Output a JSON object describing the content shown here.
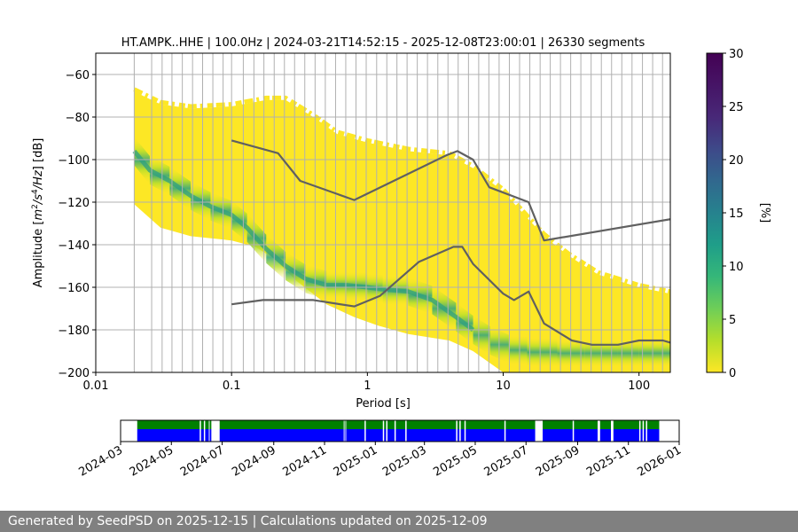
{
  "chart_data": [
    {
      "type": "heatmap",
      "title": "HT.AMPK..HHE | 100.0Hz | 2024-03-21T14:52:15 - 2025-12-08T23:00:01 | 26330 segments",
      "xlabel": "Period [s]",
      "ylabel_parts": [
        "Amplitude [",
        "m",
        "2",
        "/",
        "s",
        "4",
        "/",
        "Hz",
        "] [dB]"
      ],
      "x_scale": "log",
      "xlim": [
        0.01,
        170
      ],
      "ylim": [
        -200,
        -50
      ],
      "x_ticks": [
        {
          "v": 0.01,
          "l": "0.01"
        },
        {
          "v": 0.1,
          "l": "0.1"
        },
        {
          "v": 1,
          "l": "1"
        },
        {
          "v": 10,
          "l": "10"
        },
        {
          "v": 100,
          "l": "100"
        }
      ],
      "y_ticks": [
        {
          "v": -60,
          "l": "−60"
        },
        {
          "v": -80,
          "l": "−80"
        },
        {
          "v": -100,
          "l": "−100"
        },
        {
          "v": -120,
          "l": "−120"
        },
        {
          "v": -140,
          "l": "−140"
        },
        {
          "v": -160,
          "l": "−160"
        },
        {
          "v": -180,
          "l": "−180"
        },
        {
          "v": -200,
          "l": "−200"
        }
      ],
      "grid": true,
      "period_grid_lines": [
        0.0192,
        0.0258,
        0.0308,
        0.0364,
        0.0434,
        0.0516,
        0.0612,
        0.0728,
        0.0866,
        0.1,
        0.122,
        0.146,
        0.173,
        0.206,
        0.245,
        0.291,
        0.346,
        0.412,
        0.49,
        0.583,
        0.693,
        0.824,
        0.98,
        1.17,
        1.39,
        1.65,
        1.96,
        2.33,
        2.77,
        3.3,
        3.92,
        4.66,
        5.55,
        6.6,
        7.84,
        9.33,
        11.1,
        13.2,
        15.7,
        18.7,
        22.2,
        26.4,
        31.4,
        37.3,
        44.4,
        52.8,
        62.8,
        74.7,
        88.8,
        106,
        126,
        149
      ],
      "psd_mode": [
        [
          0.0192,
          -96
        ],
        [
          0.025,
          -105
        ],
        [
          0.035,
          -110
        ],
        [
          0.05,
          -117
        ],
        [
          0.07,
          -122
        ],
        [
          0.1,
          -126
        ],
        [
          0.13,
          -132
        ],
        [
          0.18,
          -142
        ],
        [
          0.25,
          -150
        ],
        [
          0.35,
          -156
        ],
        [
          0.5,
          -159
        ],
        [
          0.7,
          -159
        ],
        [
          1,
          -160
        ],
        [
          1.3,
          -161
        ],
        [
          2,
          -162
        ],
        [
          3,
          -166
        ],
        [
          4.5,
          -174
        ],
        [
          6,
          -180
        ],
        [
          8,
          -185
        ],
        [
          11,
          -189
        ],
        [
          15,
          -190
        ],
        [
          25,
          -191
        ],
        [
          40,
          -191
        ],
        [
          70,
          -191
        ],
        [
          100,
          -191
        ],
        [
          170,
          -191
        ]
      ],
      "psd_upper_edge": [
        [
          0.0192,
          -68
        ],
        [
          0.03,
          -74
        ],
        [
          0.05,
          -76
        ],
        [
          0.1,
          -75
        ],
        [
          0.18,
          -72
        ],
        [
          0.25,
          -72
        ],
        [
          0.4,
          -80
        ],
        [
          0.6,
          -88
        ],
        [
          1,
          -92
        ],
        [
          2,
          -96
        ],
        [
          4,
          -98
        ],
        [
          6,
          -104
        ],
        [
          10,
          -115
        ],
        [
          20,
          -136
        ],
        [
          30,
          -145
        ],
        [
          50,
          -154
        ],
        [
          100,
          -160
        ],
        [
          170,
          -163
        ]
      ],
      "psd_lower_edge": [
        [
          0.0192,
          -121
        ],
        [
          0.03,
          -132
        ],
        [
          0.05,
          -136
        ],
        [
          0.1,
          -138
        ],
        [
          0.15,
          -141
        ],
        [
          0.2,
          -146
        ],
        [
          0.3,
          -157
        ],
        [
          0.5,
          -168
        ],
        [
          0.8,
          -174
        ],
        [
          1.2,
          -178
        ],
        [
          2,
          -182
        ],
        [
          4,
          -185
        ],
        [
          6,
          -190
        ],
        [
          10,
          -200
        ],
        [
          170,
          -200
        ]
      ],
      "colorbar": {
        "label": "[%]",
        "min": 0,
        "max": 30,
        "ticks": [
          0,
          5,
          10,
          15,
          20,
          25,
          30
        ],
        "colormap": "viridis_r"
      },
      "series": [
        {
          "name": "",
          "color": "#606060",
          "points": [
            [
              0.1,
              -91
            ],
            [
              0.22,
              -97
            ],
            [
              0.32,
              -110
            ],
            [
              0.8,
              -119
            ],
            [
              3.8,
              -98
            ],
            [
              4.6,
              -96
            ],
            [
              6.0,
              -100
            ],
            [
              7.9,
              -113
            ],
            [
              15.4,
              -120
            ],
            [
              20,
              -138
            ],
            [
              170,
              -128
            ]
          ]
        },
        {
          "name": "",
          "color": "#606060",
          "points": [
            [
              0.1,
              -168
            ],
            [
              0.17,
              -166
            ],
            [
              0.4,
              -166
            ],
            [
              0.8,
              -169
            ],
            [
              1.24,
              -164
            ],
            [
              2.4,
              -148
            ],
            [
              4.3,
              -141
            ],
            [
              5.0,
              -141
            ],
            [
              6.0,
              -149
            ],
            [
              10,
              -163
            ],
            [
              12,
              -166
            ],
            [
              15.4,
              -162
            ],
            [
              20,
              -177
            ],
            [
              32,
              -185
            ],
            [
              45,
              -187
            ],
            [
              70,
              -187
            ],
            [
              100,
              -185
            ],
            [
              150,
              -185
            ],
            [
              170,
              -186
            ]
          ]
        }
      ]
    },
    {
      "type": "timeline",
      "x_ticks": [
        "2024-03",
        "2024-05",
        "2024-07",
        "2024-09",
        "2024-11",
        "2025-01",
        "2025-03",
        "2025-05",
        "2025-07",
        "2025-09",
        "2025-11",
        "2026-01"
      ],
      "xlim": [
        "2024-03-01",
        "2026-01-01"
      ],
      "colors": {
        "top": "#008000",
        "bottom": "#0000ff"
      },
      "coverage": [
        [
          "2024-03-21",
          "2024-06-15"
        ],
        [
          "2024-06-16",
          "2024-06-18"
        ],
        [
          "2024-06-28",
          "2024-11-24"
        ],
        [
          "2024-11-25",
          "2024-11-26"
        ],
        [
          "2024-11-27",
          "2025-07-12"
        ],
        [
          "2025-07-21",
          "2025-09-25"
        ],
        [
          "2025-09-28",
          "2025-10-11"
        ],
        [
          "2025-10-14",
          "2025-12-08"
        ]
      ],
      "gaps": [
        "2024-06-04",
        "2024-06-09",
        "2024-12-19",
        "2025-01-10",
        "2025-01-14",
        "2025-01-24",
        "2025-02-06",
        "2025-04-08",
        "2025-04-12",
        "2025-04-18",
        "2025-06-05",
        "2025-08-26",
        "2025-11-14",
        "2025-11-18",
        "2025-11-22"
      ]
    }
  ],
  "footer": {
    "text": "Generated by SeedPSD on 2025-12-15 | Calculations updated on 2025-12-09"
  }
}
